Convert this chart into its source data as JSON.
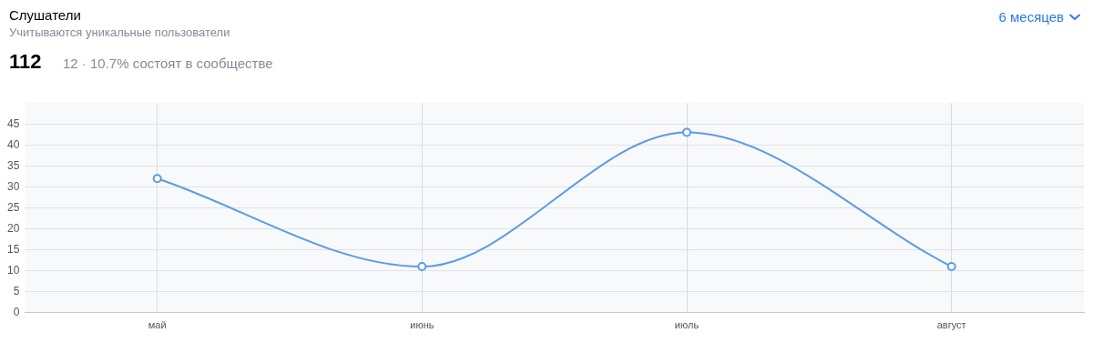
{
  "chart_data": {
    "type": "line",
    "title": "Слушатели",
    "subtitle": "Учитываются уникальные пользователи",
    "annotations": [
      "112",
      "12 · 10.7% состоят в сообществе",
      "6 месяцев"
    ],
    "categories": [
      "май",
      "июнь",
      "июль",
      "август"
    ],
    "series": [
      {
        "color": "#5b9be6",
        "values": [
          32,
          11,
          43,
          11
        ]
      }
    ],
    "ylim": [
      0,
      50
    ],
    "yticks": [
      0,
      5,
      10,
      15,
      20,
      25,
      30,
      35,
      40,
      45
    ],
    "grid": true,
    "legend": false,
    "marker": "circle",
    "line_style": "solid"
  }
}
